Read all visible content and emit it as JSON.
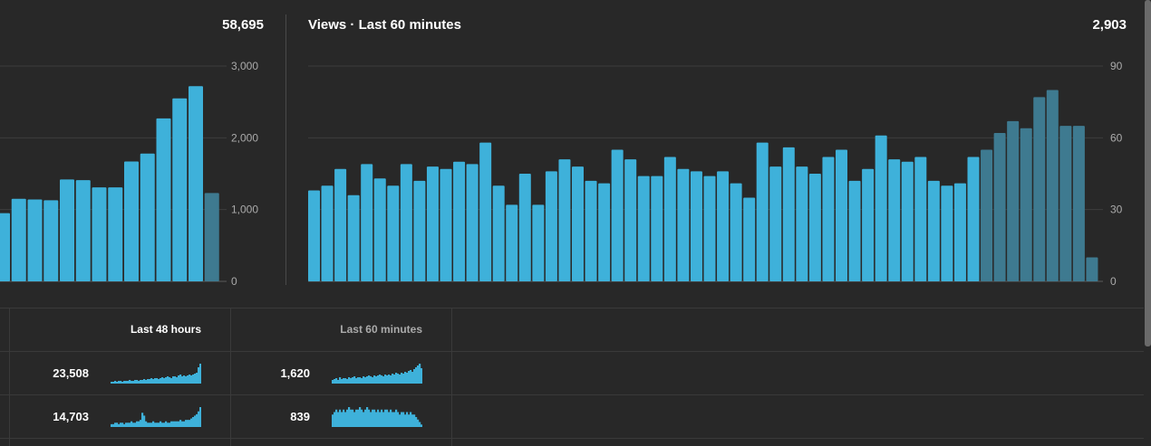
{
  "left_panel": {
    "total": "58,695",
    "y_ticks": [
      "3,000",
      "2,000",
      "1,000",
      "0"
    ]
  },
  "right_panel": {
    "title": "Views · Last 60 minutes",
    "total": "2,903",
    "y_ticks": [
      "90",
      "60",
      "30",
      "0"
    ]
  },
  "table": {
    "headers": [
      "Last 48 hours",
      "Last 60 minutes"
    ],
    "rows": [
      {
        "h48": "23,508",
        "m60": "1,620"
      },
      {
        "h48": "14,703",
        "m60": "839"
      }
    ]
  },
  "colors": {
    "bar": "#3eb1da",
    "bar_recent": "#3e7a90",
    "background": "#282828"
  },
  "chart_data": [
    {
      "type": "bar",
      "ylim": [
        0,
        3000
      ],
      "values": [
        950,
        1150,
        1140,
        1130,
        1420,
        1410,
        1310,
        1310,
        1670,
        1780,
        2270,
        2550,
        2720,
        1230
      ],
      "recent_from_index": 13
    },
    {
      "type": "bar",
      "title": "Views · Last 60 minutes",
      "ylim": [
        0,
        90
      ],
      "values": [
        38,
        40,
        47,
        36,
        49,
        43,
        40,
        49,
        42,
        48,
        47,
        50,
        49,
        58,
        40,
        32,
        45,
        32,
        46,
        51,
        48,
        42,
        41,
        55,
        51,
        44,
        44,
        52,
        47,
        46,
        44,
        46,
        41,
        35,
        58,
        48,
        56,
        48,
        45,
        52,
        55,
        42,
        47,
        61,
        51,
        50,
        52,
        42,
        40,
        41,
        52,
        55,
        62,
        67,
        64,
        77,
        80,
        65,
        65,
        10
      ],
      "recent_from_index": 51
    }
  ]
}
